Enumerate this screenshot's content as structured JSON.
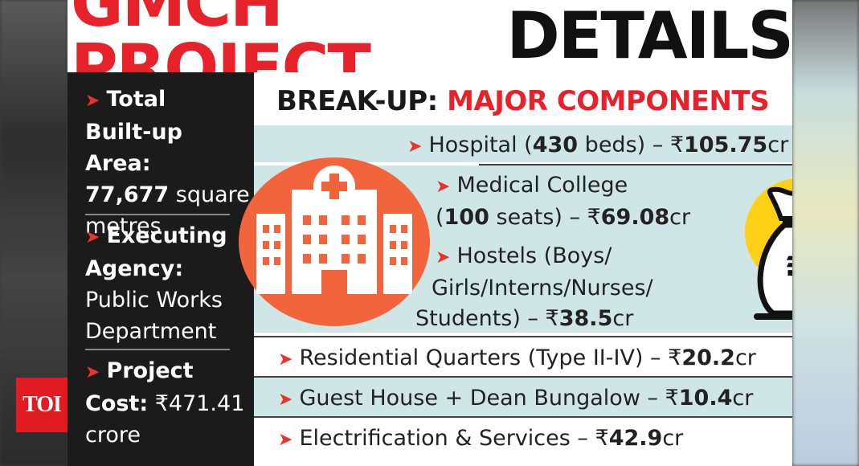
{
  "title": {
    "part1": "GMCH PROJECT",
    "part2": "DETAILS"
  },
  "logo_text": "TOI",
  "left": {
    "area": {
      "line1": "Total",
      "line2": "Built-up Area:",
      "line3_bold": "77,677",
      "line3_rest": " square",
      "line4": "metres"
    },
    "agency": {
      "line1": "Executing",
      "line2": "Agency:",
      "line3": "Public Works",
      "line4": "Department"
    },
    "cost": {
      "line1": "Project",
      "line2_bold": "Cost:",
      "line2_rest": " ₹471.41",
      "line3": "crore"
    }
  },
  "breakup": {
    "heading_black": "BREAK-UP:",
    "heading_red": "MAJOR COMPONENTS",
    "items": [
      {
        "pre": "Hospital (",
        "bold1": "430",
        "mid": " beds) – ₹",
        "bold2": "105.75",
        "post": "cr"
      },
      {
        "line1": "Medical College",
        "pre": "(",
        "bold1": "100",
        "mid": " seats) – ₹",
        "bold2": "69.08",
        "post": "cr"
      },
      {
        "line1": "Hostels (Boys/",
        "line2": "Girls/Interns/Nurses/",
        "pre": "Students) – ₹",
        "bold2": "38.5",
        "post": "cr"
      },
      {
        "pre": "Residential Quarters (Type II-IV) – ₹",
        "bold2": "20.2",
        "post": "cr"
      },
      {
        "pre": "Guest House + Dean Bungalow – ₹",
        "bold2": "10.4",
        "post": "cr"
      },
      {
        "pre": "Electrification & Services – ₹",
        "bold2": "42.9",
        "post": "cr"
      }
    ]
  },
  "icons": {
    "hospital": "hospital-icon",
    "money_bag": "rupee-money-bag-icon",
    "bullet": "arrow-bullet-icon"
  },
  "colors": {
    "red": "#e8222a",
    "orange": "#f2643c",
    "teal": "#cfe6e6",
    "gold": "#ffd116",
    "dark": "#1b1b1b"
  }
}
